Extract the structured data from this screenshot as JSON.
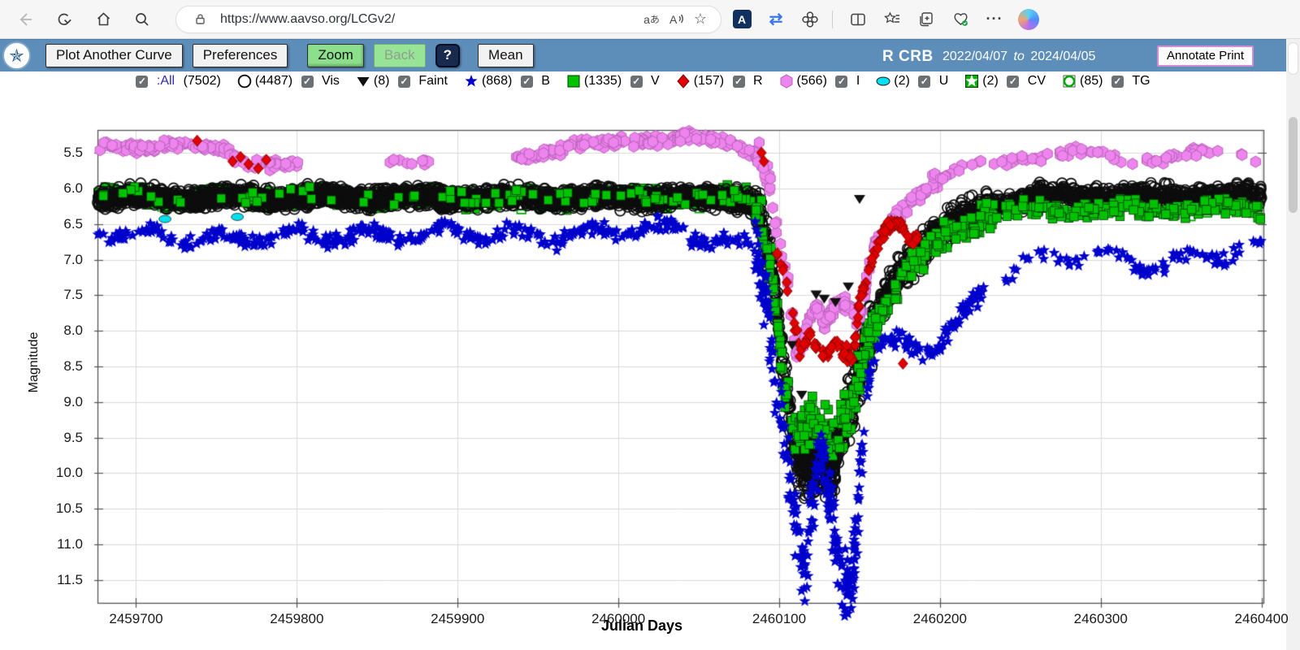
{
  "browser": {
    "url": "https://www.aavso.org/LCGv2/"
  },
  "toolbar": {
    "bg": "#5d8db9",
    "buttons": {
      "plot_another": "Plot Another Curve",
      "preferences": "Preferences",
      "zoom": "Zoom",
      "back": "Back",
      "help": "?",
      "mean": "Mean"
    },
    "title": "R CRB",
    "date_start": "2022/04/07",
    "date_sep": "to",
    "date_end": "2024/04/05",
    "annotate": "Annotate Print"
  },
  "legend": {
    "items": [
      {
        "id": "all",
        "label": ":All",
        "count": "(7502)",
        "checked": true,
        "marker": null
      },
      {
        "id": "vis",
        "label": "Vis",
        "count": "(4487)",
        "checked": true,
        "marker": "circle-open"
      },
      {
        "id": "faint",
        "label": "Faint",
        "count": "(8)",
        "checked": true,
        "marker": "triangle-down"
      },
      {
        "id": "b",
        "label": "B",
        "count": "(868)",
        "checked": true,
        "marker": "star-blue"
      },
      {
        "id": "v",
        "label": "V",
        "count": "(1335)",
        "checked": true,
        "marker": "square-green"
      },
      {
        "id": "r",
        "label": "R",
        "count": "(157)",
        "checked": true,
        "marker": "diamond-red"
      },
      {
        "id": "i",
        "label": "I",
        "count": "(566)",
        "checked": true,
        "marker": "hexagon-violet"
      },
      {
        "id": "u",
        "label": "U",
        "count": "(2)",
        "checked": true,
        "marker": "ellipse-cyan"
      },
      {
        "id": "cv",
        "label": "CV",
        "count": "(2)",
        "checked": true,
        "marker": "square-star-green"
      },
      {
        "id": "tg",
        "label": "TG",
        "count": "(85)",
        "checked": true,
        "marker": "square-open-green"
      }
    ]
  },
  "chart_data": {
    "type": "scatter",
    "title": "R CRB light curve 2022/04/07 to 2024/04/05",
    "xlabel": "Julian Days",
    "ylabel": "Magnitude",
    "x_ticks": [
      2459700,
      2459800,
      2459900,
      2460000,
      2460100,
      2460200,
      2460300,
      2460400
    ],
    "y_ticks": [
      5.5,
      6.0,
      6.5,
      7.0,
      7.5,
      8.0,
      8.5,
      9.0,
      9.5,
      10.0,
      10.5,
      11.0,
      11.5
    ],
    "x_range": [
      2459676,
      2460401.2
    ],
    "y_range": [
      5.18,
      11.82
    ],
    "y_inverted": true,
    "grid": true,
    "colors": {
      "vis": "#0d0d0d",
      "b": "#0000cd",
      "v": "#00c300",
      "r": "#e00000",
      "i": "#ee85ee",
      "u": "#00e0f0",
      "cv": "#00c300",
      "tg": "#00a800",
      "faint": "#111111"
    },
    "series": [
      {
        "name": "TG",
        "symbol": "square-open",
        "color": "#00a800",
        "count": 85,
        "anchors": [
          [
            2459676,
            6.15
          ],
          [
            2460080,
            6.15
          ],
          [
            2460100,
            8.2
          ],
          [
            2460120,
            9.3
          ],
          [
            2460140,
            9.2
          ],
          [
            2460155,
            8.2
          ],
          [
            2460175,
            7.3
          ],
          [
            2460200,
            6.7
          ],
          [
            2460240,
            6.3
          ],
          [
            2460400,
            6.25
          ]
        ],
        "segments": [
          [
            2459680,
            2460080,
            70,
            0.12
          ],
          [
            2460150,
            2460400,
            15,
            0.15
          ]
        ]
      },
      {
        "name": "CV",
        "symbol": "square-star",
        "color": "#00c300",
        "count": 2,
        "points": [
          [
            2459712,
            6.1
          ],
          [
            2459714,
            6.14
          ]
        ]
      },
      {
        "name": "U",
        "symbol": "ellipse",
        "color": "#00e0f0",
        "count": 2,
        "points": [
          [
            2459718,
            6.43
          ],
          [
            2459763,
            6.4
          ]
        ]
      },
      {
        "name": "V",
        "symbol": "square",
        "color": "#00c300",
        "count": 1335,
        "wiggle": {
          "amp": 0.04,
          "period": 62
        },
        "anchors": [
          [
            2459676,
            6.12
          ],
          [
            2460080,
            6.12
          ],
          [
            2460088,
            6.4
          ],
          [
            2460096,
            7.3
          ],
          [
            2460103,
            8.7
          ],
          [
            2460110,
            9.5
          ],
          [
            2460118,
            9.3
          ],
          [
            2460126,
            9.4
          ],
          [
            2460134,
            9.5
          ],
          [
            2460142,
            9.2
          ],
          [
            2460149,
            8.7
          ],
          [
            2460155,
            8.2
          ],
          [
            2460162,
            7.8
          ],
          [
            2460172,
            7.4
          ],
          [
            2460184,
            7.1
          ],
          [
            2460196,
            6.8
          ],
          [
            2460212,
            6.55
          ],
          [
            2460235,
            6.35
          ],
          [
            2460270,
            6.3
          ],
          [
            2460400,
            6.28
          ]
        ],
        "segments": [
          [
            2459676,
            2460085,
            820,
            0.11
          ],
          [
            2460085,
            2460112,
            60,
            0.3
          ],
          [
            2460112,
            2460160,
            130,
            0.35
          ],
          [
            2460160,
            2460235,
            130,
            0.18
          ],
          [
            2460235,
            2460400,
            195,
            0.11
          ]
        ]
      },
      {
        "name": "Vis",
        "symbol": "circle-open",
        "color": "#0d0d0d",
        "count": 4487,
        "wiggle": {
          "amp": 0.03,
          "period": 57
        },
        "anchors": [
          [
            2459676,
            6.13
          ],
          [
            2460080,
            6.13
          ],
          [
            2460088,
            6.35
          ],
          [
            2460096,
            7.2
          ],
          [
            2460103,
            8.6
          ],
          [
            2460110,
            9.7
          ],
          [
            2460116,
            9.9
          ],
          [
            2460124,
            9.8
          ],
          [
            2460132,
            9.9
          ],
          [
            2460140,
            9.35
          ],
          [
            2460147,
            8.85
          ],
          [
            2460153,
            8.35
          ],
          [
            2460160,
            7.85
          ],
          [
            2460170,
            7.35
          ],
          [
            2460182,
            7.0
          ],
          [
            2460195,
            6.7
          ],
          [
            2460210,
            6.45
          ],
          [
            2460230,
            6.25
          ],
          [
            2460260,
            6.1
          ],
          [
            2460400,
            6.1
          ]
        ],
        "segments": [
          [
            2459676,
            2460085,
            2747,
            0.13
          ],
          [
            2460085,
            2460112,
            160,
            0.3
          ],
          [
            2460112,
            2460158,
            420,
            0.42
          ],
          [
            2460158,
            2460230,
            430,
            0.22
          ],
          [
            2460230,
            2460400,
            730,
            0.13
          ]
        ]
      },
      {
        "name": "B",
        "symbol": "star",
        "color": "#0000cd",
        "count": 868,
        "wiggle": {
          "amp": 0.09,
          "period": 46
        },
        "anchors": [
          [
            2459676,
            6.62
          ],
          [
            2459750,
            6.7
          ],
          [
            2459800,
            6.68
          ],
          [
            2459900,
            6.62
          ],
          [
            2459960,
            6.68
          ],
          [
            2460020,
            6.55
          ],
          [
            2460060,
            6.72
          ],
          [
            2460085,
            6.85
          ],
          [
            2460092,
            7.6
          ],
          [
            2460098,
            8.6
          ],
          [
            2460104,
            9.6
          ],
          [
            2460110,
            10.6
          ],
          [
            2460116,
            11.5
          ],
          [
            2460120,
            10.6
          ],
          [
            2460124,
            10.0
          ],
          [
            2460128,
            9.9
          ],
          [
            2460133,
            10.5
          ],
          [
            2460138,
            11.3
          ],
          [
            2460144,
            11.6
          ],
          [
            2460149,
            10.5
          ],
          [
            2460154,
            9.0
          ],
          [
            2460158,
            8.4
          ],
          [
            2460165,
            8.2
          ],
          [
            2460180,
            8.15
          ],
          [
            2460195,
            8.25
          ],
          [
            2460205,
            8.1
          ],
          [
            2460215,
            7.75
          ],
          [
            2460230,
            7.4
          ],
          [
            2460250,
            7.1
          ],
          [
            2460270,
            6.95
          ],
          [
            2460300,
            6.95
          ],
          [
            2460330,
            7.1
          ],
          [
            2460360,
            6.95
          ],
          [
            2460400,
            6.85
          ]
        ],
        "segments": [
          [
            2459676,
            2460085,
            410,
            0.1
          ],
          [
            2460085,
            2460118,
            115,
            0.45
          ],
          [
            2460118,
            2460152,
            145,
            0.55
          ],
          [
            2460152,
            2460228,
            105,
            0.15
          ],
          [
            2460240,
            2460400,
            93,
            0.1
          ]
        ]
      },
      {
        "name": "I",
        "symbol": "hexagon",
        "color": "#ee85ee",
        "count": 566,
        "wiggle": {
          "amp": 0.04,
          "period": 78
        },
        "anchors": [
          [
            2459676,
            5.42
          ],
          [
            2459720,
            5.38
          ],
          [
            2459755,
            5.48
          ],
          [
            2459765,
            5.62
          ],
          [
            2459800,
            5.65
          ],
          [
            2459860,
            5.6
          ],
          [
            2459880,
            5.62
          ],
          [
            2459935,
            5.55
          ],
          [
            2459970,
            5.45
          ],
          [
            2460010,
            5.3
          ],
          [
            2460040,
            5.28
          ],
          [
            2460070,
            5.4
          ],
          [
            2460086,
            5.5
          ],
          [
            2460094,
            5.9
          ],
          [
            2460100,
            6.6
          ],
          [
            2460106,
            7.4
          ],
          [
            2460111,
            8.3
          ],
          [
            2460115,
            8.15
          ],
          [
            2460119,
            7.8
          ],
          [
            2460124,
            7.7
          ],
          [
            2460128,
            7.95
          ],
          [
            2460133,
            7.78
          ],
          [
            2460138,
            7.62
          ],
          [
            2460143,
            7.72
          ],
          [
            2460148,
            7.82
          ],
          [
            2460152,
            7.6
          ],
          [
            2460157,
            7.0
          ],
          [
            2460163,
            6.55
          ],
          [
            2460172,
            6.35
          ],
          [
            2460182,
            6.15
          ],
          [
            2460192,
            6.0
          ],
          [
            2460205,
            5.85
          ],
          [
            2460220,
            5.7
          ],
          [
            2460240,
            5.6
          ],
          [
            2460260,
            5.55
          ],
          [
            2460285,
            5.5
          ],
          [
            2460305,
            5.55
          ],
          [
            2460320,
            5.62
          ],
          [
            2460340,
            5.55
          ],
          [
            2460360,
            5.52
          ],
          [
            2460380,
            5.5
          ],
          [
            2460400,
            5.55
          ]
        ],
        "segments": [
          [
            2459677,
            2459757,
            95,
            0.07
          ],
          [
            2459757,
            2459802,
            40,
            0.07
          ],
          [
            2459855,
            2459882,
            12,
            0.05
          ],
          [
            2459935,
            2460086,
            164,
            0.07
          ],
          [
            2460086,
            2460112,
            35,
            0.2
          ],
          [
            2460112,
            2460152,
            85,
            0.12
          ],
          [
            2460152,
            2460200,
            55,
            0.12
          ],
          [
            2460200,
            2460400,
            80,
            0.07
          ]
        ]
      },
      {
        "name": "R",
        "symbol": "diamond",
        "color": "#e00000",
        "count": 157,
        "anchors": [
          [
            2460098,
            6.8
          ],
          [
            2460104,
            7.3
          ],
          [
            2460109,
            7.9
          ],
          [
            2460113,
            8.25
          ],
          [
            2460118,
            8.05
          ],
          [
            2460123,
            8.2
          ],
          [
            2460128,
            8.35
          ],
          [
            2460134,
            8.15
          ],
          [
            2460140,
            8.3
          ],
          [
            2460146,
            8.4
          ],
          [
            2460150,
            7.6
          ],
          [
            2460154,
            7.3
          ],
          [
            2460158,
            7.0
          ],
          [
            2460163,
            6.7
          ],
          [
            2460168,
            6.52
          ],
          [
            2460172,
            6.48
          ],
          [
            2460177,
            6.55
          ],
          [
            2460181,
            6.75
          ],
          [
            2460186,
            6.72
          ]
        ],
        "segments": [
          [
            2460098,
            2460113,
            14,
            0.12
          ],
          [
            2460113,
            2460148,
            55,
            0.1
          ],
          [
            2460148,
            2460186,
            79,
            0.08
          ]
        ],
        "points": [
          [
            2459738,
            5.33
          ],
          [
            2459760,
            5.62
          ],
          [
            2459765,
            5.56
          ],
          [
            2459770,
            5.66
          ],
          [
            2459776,
            5.72
          ],
          [
            2459781,
            5.6
          ],
          [
            2460089,
            5.5
          ],
          [
            2460090.5,
            5.62
          ],
          [
            2460177,
            8.46
          ]
        ]
      },
      {
        "name": "Faint",
        "symbol": "triangle-down",
        "color": "#111111",
        "count": 8,
        "points": [
          [
            2460123,
            7.49
          ],
          [
            2460143,
            7.38
          ],
          [
            2460150,
            6.15
          ],
          [
            2460138,
            9.77
          ],
          [
            2460128,
            7.55
          ],
          [
            2460108,
            8.2
          ],
          [
            2460114,
            8.9
          ],
          [
            2460135,
            7.6
          ]
        ]
      }
    ]
  }
}
